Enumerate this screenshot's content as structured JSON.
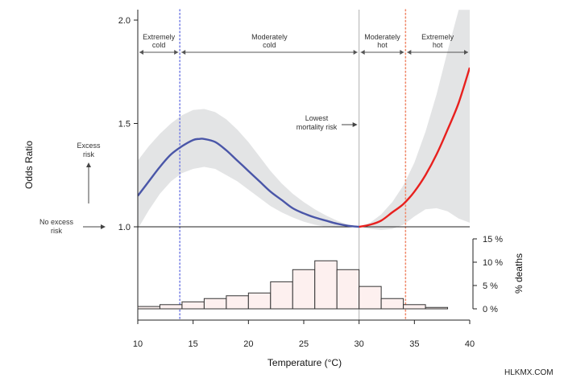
{
  "chart_data": [
    {
      "type": "line",
      "title": "",
      "xlabel": "Temperature (°C)",
      "ylabel": "Odds Ratio",
      "xlim": [
        10,
        40
      ],
      "ylim": [
        1.0,
        2.0
      ],
      "yticks": [
        1.0,
        1.5,
        2.0
      ],
      "ytick_labels": [
        "1.0",
        "1.5",
        "2.0"
      ],
      "xticks": [
        10,
        15,
        20,
        25,
        30,
        35,
        40
      ],
      "xtick_labels": [
        "10",
        "15",
        "20",
        "25",
        "30",
        "35",
        "40"
      ],
      "reference_line": 1.0,
      "series": [
        {
          "color": "#4a56a8",
          "x": [
            10,
            11,
            12,
            13,
            14,
            15,
            15.5,
            16,
            17,
            18,
            19,
            20,
            21,
            22,
            23,
            24,
            25,
            26,
            27,
            28,
            29,
            30
          ],
          "y": [
            1.15,
            1.22,
            1.29,
            1.35,
            1.39,
            1.42,
            1.425,
            1.425,
            1.41,
            1.37,
            1.32,
            1.27,
            1.22,
            1.17,
            1.13,
            1.09,
            1.065,
            1.045,
            1.03,
            1.015,
            1.005,
            1.0
          ]
        },
        {
          "color": "#e8201e",
          "x": [
            30,
            31,
            32,
            33,
            34,
            35,
            36,
            37,
            38,
            39,
            40
          ],
          "y": [
            1.0,
            1.01,
            1.03,
            1.07,
            1.11,
            1.17,
            1.25,
            1.35,
            1.47,
            1.6,
            1.77
          ]
        }
      ],
      "confidence_band": {
        "color": "#e3e4e5",
        "x": [
          10,
          11,
          12,
          13,
          14,
          15,
          16,
          17,
          18,
          19,
          20,
          21,
          22,
          23,
          24,
          25,
          26,
          27,
          28,
          29,
          30,
          31,
          32,
          33,
          34,
          35,
          36,
          37,
          38,
          39,
          40
        ],
        "upper": [
          1.32,
          1.39,
          1.45,
          1.5,
          1.54,
          1.565,
          1.57,
          1.555,
          1.52,
          1.47,
          1.41,
          1.34,
          1.27,
          1.21,
          1.16,
          1.12,
          1.085,
          1.055,
          1.03,
          1.01,
          1.0,
          1.02,
          1.06,
          1.12,
          1.2,
          1.31,
          1.46,
          1.64,
          1.85,
          2.05,
          2.05
        ],
        "lower": [
          0.99,
          1.08,
          1.16,
          1.22,
          1.26,
          1.28,
          1.29,
          1.28,
          1.25,
          1.22,
          1.18,
          1.14,
          1.1,
          1.07,
          1.045,
          1.025,
          1.01,
          1.0,
          0.995,
          0.995,
          1.0,
          0.99,
          0.985,
          0.99,
          1.01,
          1.05,
          1.085,
          1.09,
          1.075,
          1.04,
          1.02
        ]
      },
      "vertical_lines": [
        {
          "x": 13.8,
          "color": "#7b84e6",
          "style": "dotted"
        },
        {
          "x": 30,
          "color": "#b0b0b0",
          "style": "solid"
        },
        {
          "x": 34.2,
          "color": "#f08a6c",
          "style": "dotted"
        }
      ],
      "zones": [
        {
          "label": "Extremely\ncold",
          "x_from": 10,
          "x_to": 13.8
        },
        {
          "label": "Moderately\ncold",
          "x_from": 13.8,
          "x_to": 30
        },
        {
          "label": "Moderately\nhot",
          "x_from": 30,
          "x_to": 34.2
        },
        {
          "label": "Extremely\nhot",
          "x_from": 34.2,
          "x_to": 40
        }
      ],
      "annotations": {
        "lowest": "Lowest\nmortality risk",
        "excess": "Excess\nrisk",
        "no_excess": "No excess\nrisk"
      }
    },
    {
      "type": "bar",
      "title": "",
      "xlabel": "Temperature (°C)",
      "ylabel": "% deaths",
      "ylim": [
        0,
        15
      ],
      "yticks": [
        0,
        5,
        10,
        15
      ],
      "ytick_labels": [
        "0 %",
        "5 %",
        "10 %",
        "15 %"
      ],
      "bin_edges": [
        10,
        12,
        14,
        16,
        18,
        20,
        22,
        24,
        26,
        28,
        30,
        32,
        34,
        36,
        38,
        40
      ],
      "values": [
        0.5,
        0.9,
        1.5,
        2.2,
        2.8,
        3.4,
        5.8,
        8.4,
        10.3,
        8.4,
        4.8,
        2.2,
        0.9,
        0.3,
        0.0
      ],
      "bar_fill": "#fdf0ef",
      "bar_stroke": "#333333"
    }
  ],
  "watermark": "HLKMX.COM"
}
